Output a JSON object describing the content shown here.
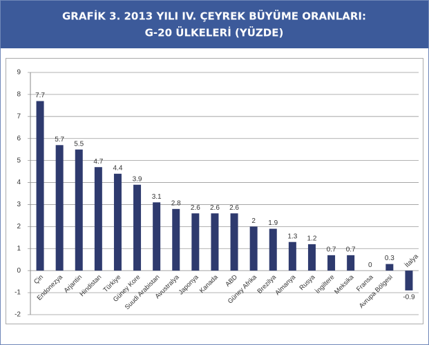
{
  "chart_data": {
    "type": "bar",
    "title": [
      "GRAFİK 3. 2013 YILI IV. ÇEYREK BÜYÜME ORANLARI:",
      "G-20 ÜLKELERİ (YÜZDE)"
    ],
    "categories": [
      "Çin",
      "Endonezya",
      "Arjantin",
      "Hindistan",
      "Türkiye",
      "Güney Kore",
      "Suudi Arabistan",
      "Avustralya",
      "Japonya",
      "Kanada",
      "ABD",
      "Güney Afrika",
      "Brezilya",
      "Almanya",
      "Rusya",
      "İngiltere",
      "Meksika",
      "Fransa",
      "Avrupa Bölgesi",
      "İtalya"
    ],
    "values": [
      7.7,
      5.7,
      5.5,
      4.7,
      4.4,
      3.9,
      3.1,
      2.8,
      2.6,
      2.6,
      2.6,
      2,
      1.9,
      1.3,
      1.2,
      0.7,
      0.7,
      0,
      0.3,
      -0.9
    ],
    "color": "#2e3a6e",
    "ylim": [
      -2,
      9
    ],
    "yticks": [
      -2,
      -1,
      0,
      1,
      2,
      3,
      4,
      5,
      6,
      7,
      8,
      9
    ],
    "grid": true
  }
}
